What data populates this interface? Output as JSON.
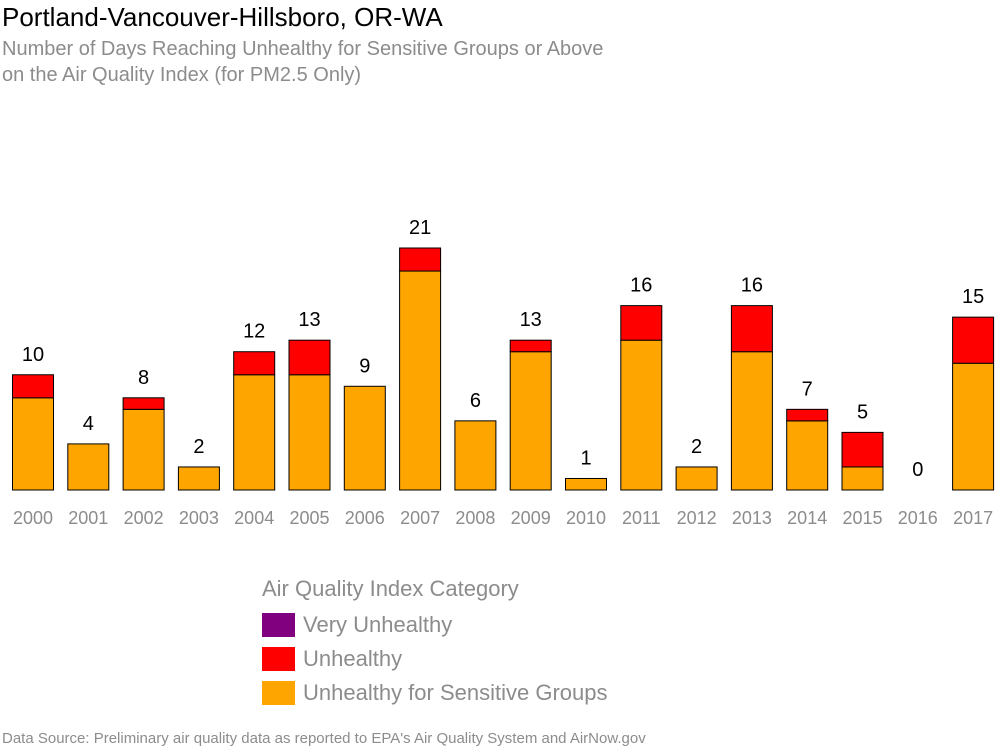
{
  "title": "Portland-Vancouver-Hillsboro, OR-WA",
  "subtitle_lines": [
    "Number of Days Reaching Unhealthy for Sensitive Groups or Above",
    "on the Air Quality Index (for PM2.5 Only)"
  ],
  "source": "Data Source: Preliminary air quality data as reported to EPA's Air Quality System and AirNow.gov",
  "legend": {
    "title": "Air Quality Index Category",
    "items": [
      {
        "label": "Very Unhealthy",
        "color": "#800080"
      },
      {
        "label": "Unhealthy",
        "color": "#ff0000"
      },
      {
        "label": "Unhealthy for Sensitive Groups",
        "color": "#ffa500"
      }
    ]
  },
  "chart_data": {
    "type": "bar",
    "stacked": true,
    "categories": [
      "2000",
      "2001",
      "2002",
      "2003",
      "2004",
      "2005",
      "2006",
      "2007",
      "2008",
      "2009",
      "2010",
      "2011",
      "2012",
      "2013",
      "2014",
      "2015",
      "2016",
      "2017"
    ],
    "series": [
      {
        "name": "Unhealthy for Sensitive Groups",
        "color": "#ffa500",
        "values": [
          8,
          4,
          7,
          2,
          10,
          10,
          9,
          19,
          6,
          12,
          1,
          13,
          2,
          12,
          6,
          2,
          0,
          11
        ]
      },
      {
        "name": "Unhealthy",
        "color": "#ff0000",
        "values": [
          2,
          0,
          1,
          0,
          2,
          3,
          0,
          2,
          0,
          1,
          0,
          3,
          0,
          4,
          1,
          3,
          0,
          4
        ]
      },
      {
        "name": "Very Unhealthy",
        "color": "#800080",
        "values": [
          0,
          0,
          0,
          0,
          0,
          0,
          0,
          0,
          0,
          0,
          0,
          0,
          0,
          0,
          0,
          0,
          0,
          0
        ]
      }
    ],
    "totals": [
      10,
      4,
      8,
      2,
      12,
      13,
      9,
      21,
      6,
      13,
      1,
      16,
      2,
      16,
      7,
      5,
      0,
      15
    ],
    "ylim": [
      0,
      21
    ],
    "grid": false,
    "legend_position": "bottom"
  }
}
